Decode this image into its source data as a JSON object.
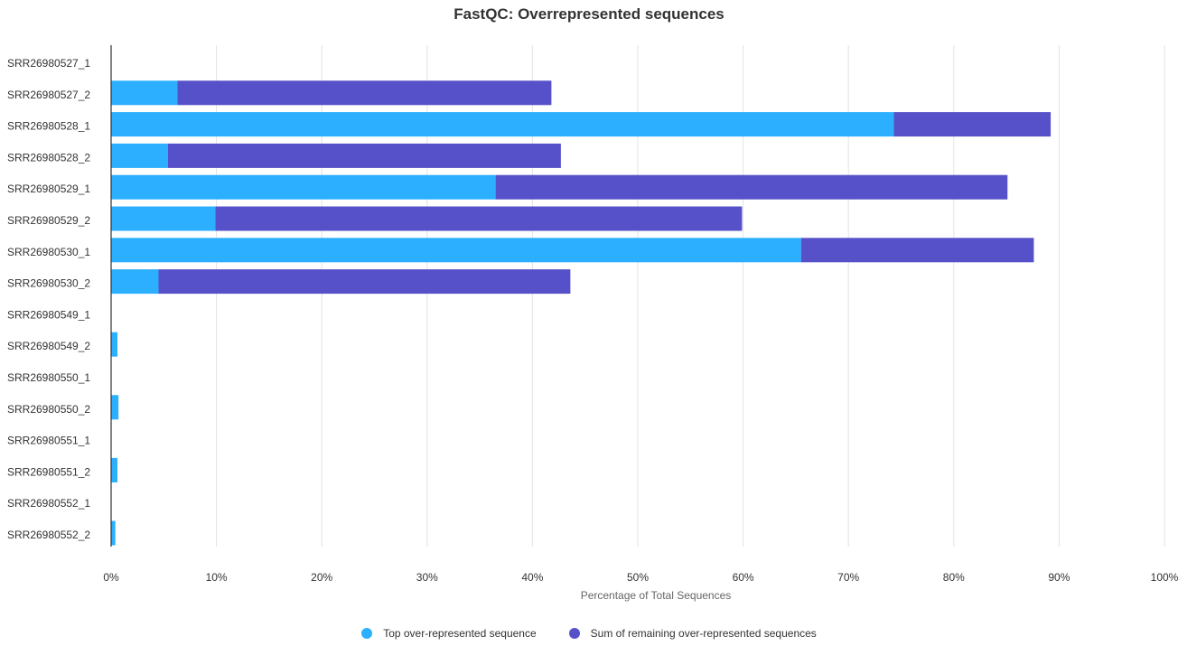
{
  "chart_data": {
    "type": "bar",
    "orientation": "horizontal",
    "stacked": true,
    "title": "FastQC: Overrepresented sequences",
    "xlabel": "Percentage of Total Sequences",
    "ylabel": "",
    "xlim": [
      0,
      100
    ],
    "x_ticks": [
      "0%",
      "10%",
      "20%",
      "30%",
      "40%",
      "50%",
      "60%",
      "70%",
      "80%",
      "90%",
      "100%"
    ],
    "grid": true,
    "legend_position": "bottom",
    "categories": [
      "SRR26980527_1",
      "SRR26980527_2",
      "SRR26980528_1",
      "SRR26980528_2",
      "SRR26980529_1",
      "SRR26980529_2",
      "SRR26980530_1",
      "SRR26980530_2",
      "SRR26980549_1",
      "SRR26980549_2",
      "SRR26980550_1",
      "SRR26980550_2",
      "SRR26980551_1",
      "SRR26980551_2",
      "SRR26980552_1",
      "SRR26980552_2"
    ],
    "series": [
      {
        "name": "Top over-represented sequence",
        "color": "#2cafff",
        "values": [
          0,
          6.3,
          74.3,
          5.4,
          36.5,
          9.9,
          65.5,
          4.5,
          0,
          0.6,
          0,
          0.7,
          0,
          0.6,
          0,
          0.4
        ]
      },
      {
        "name": "Sum of remaining over-represented sequences",
        "color": "#5651c9",
        "values": [
          0,
          35.5,
          14.9,
          37.3,
          48.6,
          50.0,
          22.1,
          39.1,
          0,
          0,
          0,
          0,
          0,
          0,
          0,
          0
        ]
      }
    ]
  }
}
